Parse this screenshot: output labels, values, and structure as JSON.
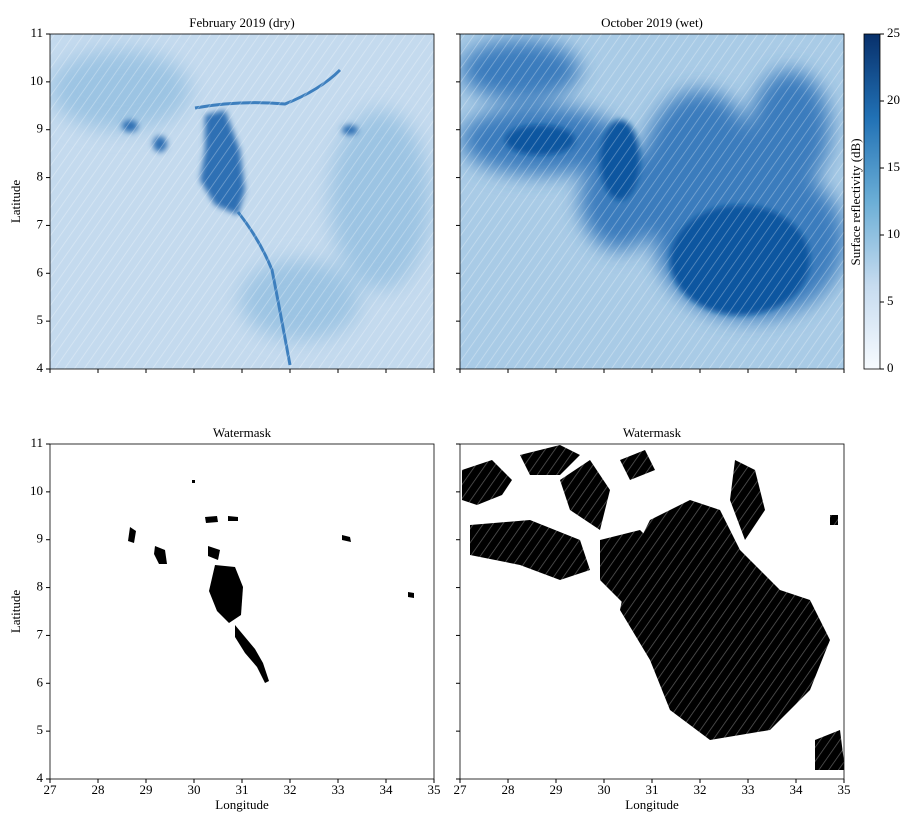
{
  "chart_data": [
    {
      "type": "image",
      "title": "February 2019 (dry)",
      "ylabel": "Latitude",
      "xlim": [
        27,
        35
      ],
      "ylim": [
        4,
        11
      ],
      "xticks": [
        27,
        28,
        29,
        30,
        31,
        32,
        33,
        34,
        35
      ],
      "yticks": [
        4,
        5,
        6,
        7,
        8,
        9,
        10,
        11
      ],
      "show_xticklabels": false,
      "show_yticklabels": true
    },
    {
      "type": "image",
      "title": "October 2019 (wet)",
      "xlim": [
        27,
        35
      ],
      "ylim": [
        4,
        11
      ],
      "xticks": [
        27,
        28,
        29,
        30,
        31,
        32,
        33,
        34,
        35
      ],
      "yticks": [
        4,
        5,
        6,
        7,
        8,
        9,
        10,
        11
      ],
      "show_xticklabels": false,
      "show_yticklabels": false
    },
    {
      "type": "image",
      "title": "Watermask",
      "xlabel": "Longitude",
      "ylabel": "Latitude",
      "xlim": [
        27,
        35
      ],
      "ylim": [
        4,
        11
      ],
      "xticks": [
        27,
        28,
        29,
        30,
        31,
        32,
        33,
        34,
        35
      ],
      "yticks": [
        4,
        5,
        6,
        7,
        8,
        9,
        10,
        11
      ],
      "show_xticklabels": true,
      "show_yticklabels": true
    },
    {
      "type": "image",
      "title": "Watermask",
      "xlabel": "Longitude",
      "xlim": [
        27,
        35
      ],
      "ylim": [
        4,
        11
      ],
      "xticks": [
        27,
        28,
        29,
        30,
        31,
        32,
        33,
        34,
        35
      ],
      "yticks": [
        4,
        5,
        6,
        7,
        8,
        9,
        10,
        11
      ],
      "show_xticklabels": true,
      "show_yticklabels": false
    }
  ],
  "colorbar": {
    "label": "Surface reflectivity (dB)",
    "lim": [
      0,
      25
    ],
    "ticks": [
      0,
      5,
      10,
      15,
      20,
      25
    ],
    "colors": [
      "#f7fbff",
      "#c6dbef",
      "#6baed6",
      "#2171b5",
      "#08306b"
    ]
  }
}
